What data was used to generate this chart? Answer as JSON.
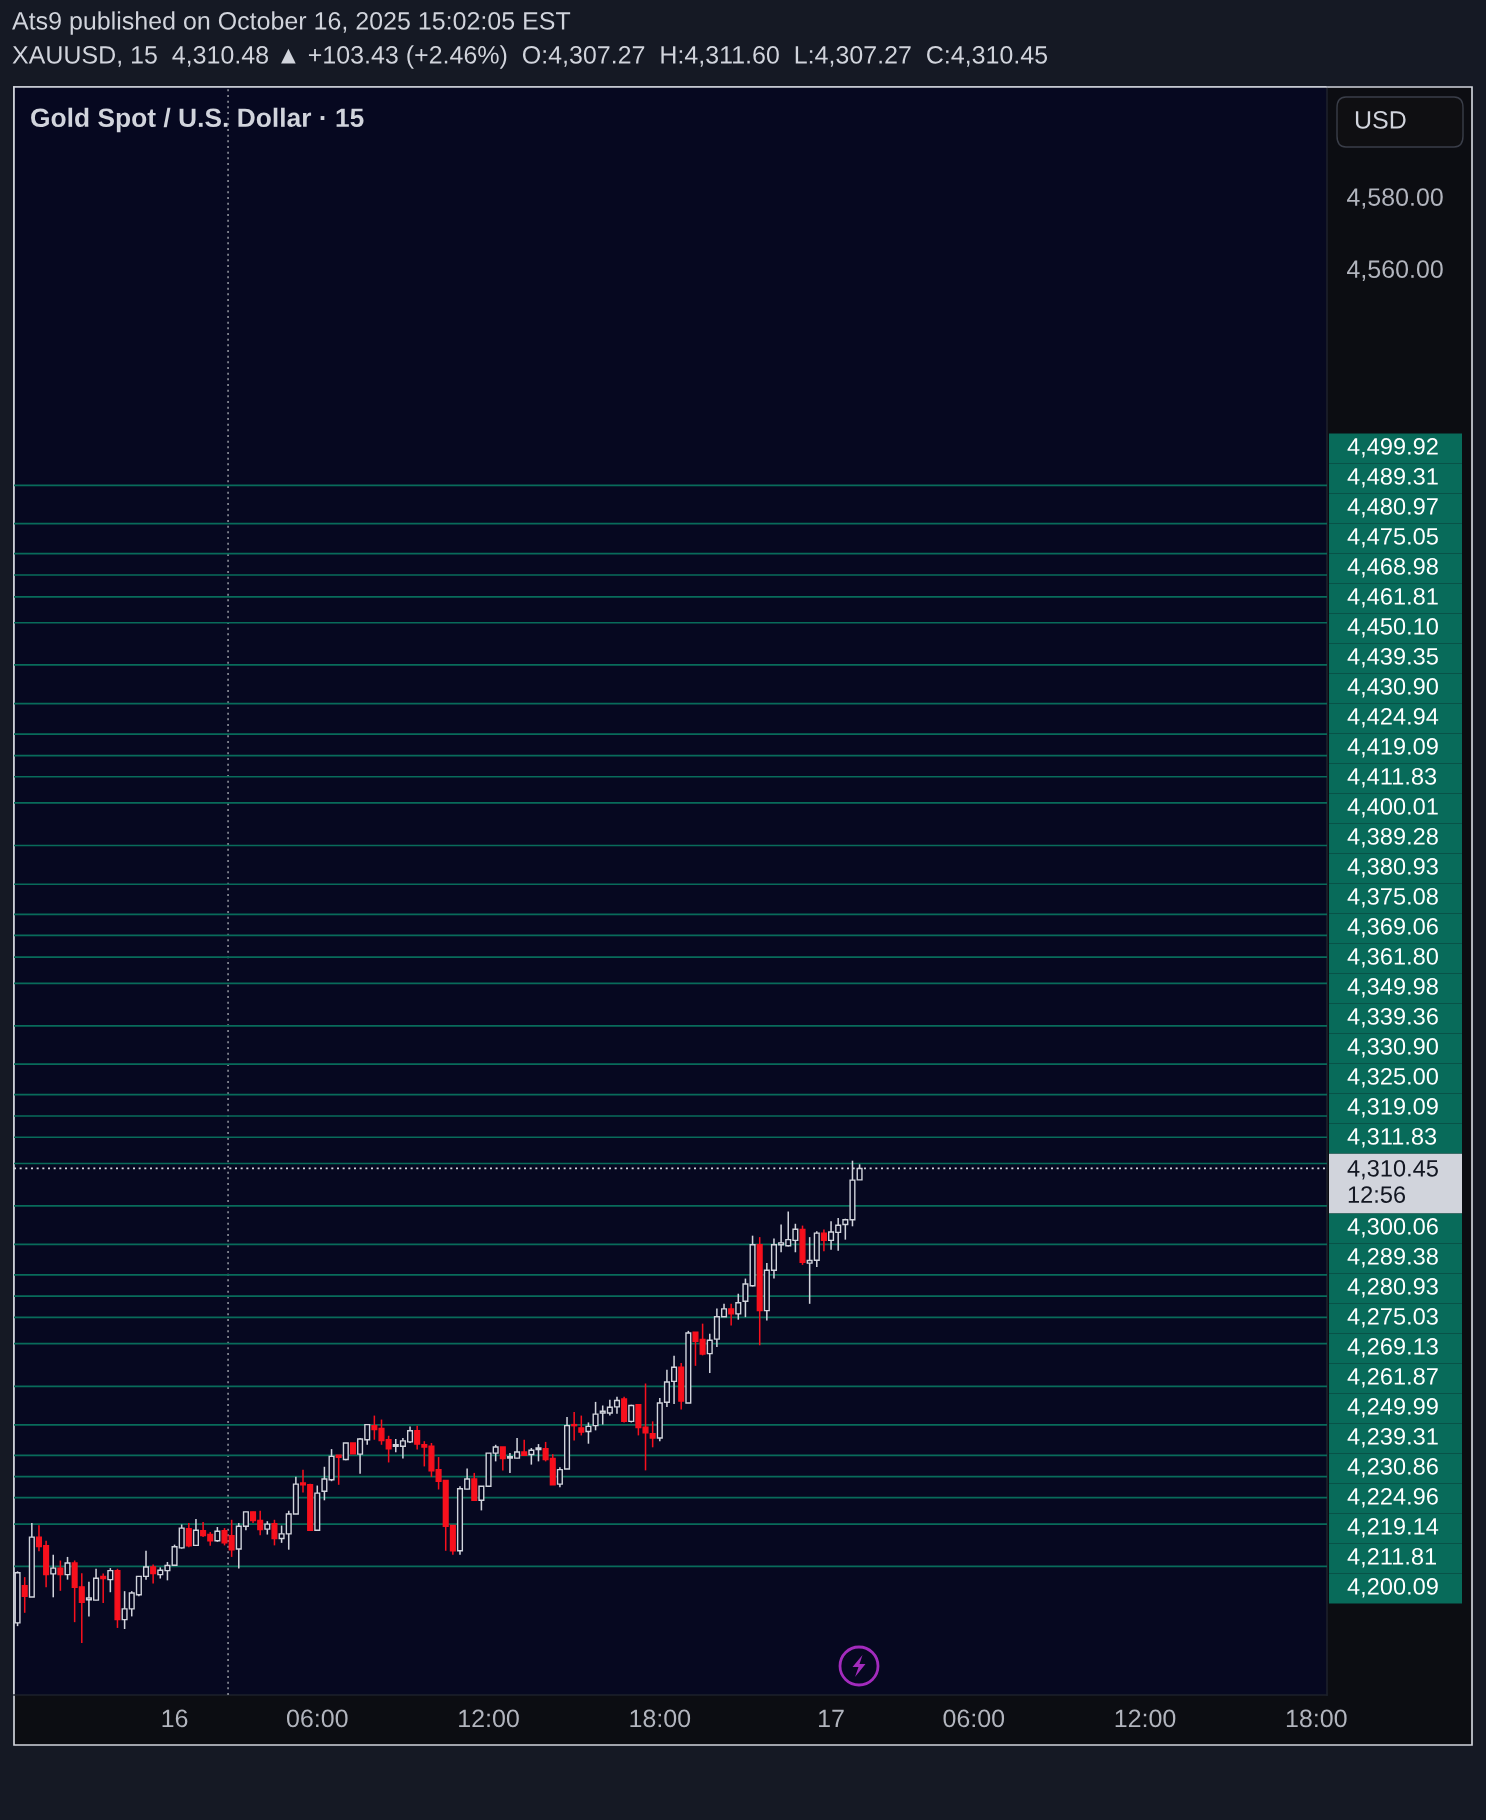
{
  "chart_data": {
    "type": "candlestick",
    "title": "Gold Spot / U.S. Dollar · 15",
    "ylabel": "USD",
    "annotations": [
      "Ats9 published on October 16, 2025 15:02:05 EST",
      "XAUUSD, 15  4,310.48 ▲ +103.43 (+2.46%)  O:4,307.27  H:4,311.60  L:4,307.27  C:4,310.45"
    ],
    "categories": [
      null,
      null,
      null,
      null,
      null,
      null,
      null,
      null,
      null,
      null,
      null,
      null,
      null,
      null,
      null,
      null,
      null,
      null,
      null,
      null,
      null,
      null,
      "16",
      null,
      null,
      null,
      null,
      null,
      null,
      null,
      null,
      null,
      null,
      null,
      null,
      null,
      null,
      null,
      null,
      null,
      null,
      null,
      "06:00",
      null,
      null,
      null,
      null,
      null,
      null,
      null,
      null,
      null,
      null,
      null,
      null,
      null,
      null,
      null,
      null,
      null,
      null,
      null,
      null,
      null,
      null,
      null,
      "12:00",
      null,
      null,
      null,
      null,
      null,
      null,
      null,
      null,
      null,
      null,
      null,
      null,
      null,
      null,
      null,
      null,
      null,
      null,
      null,
      null,
      null,
      null,
      null,
      "18:00",
      null,
      null,
      null,
      null,
      null,
      null,
      null,
      null,
      null,
      null,
      null,
      null,
      null,
      null,
      null,
      null,
      null,
      null,
      null,
      null,
      null,
      null,
      null,
      "17",
      null,
      null,
      null,
      null,
      null,
      null,
      null,
      null,
      null,
      null,
      null,
      null,
      null,
      null,
      null,
      null,
      null,
      null,
      null,
      "06:00",
      null,
      null,
      null,
      null,
      null,
      null,
      null,
      null,
      null,
      null,
      null,
      null,
      null,
      null,
      null,
      null,
      null,
      null,
      null,
      null,
      null,
      null,
      null,
      "12:00",
      null,
      null,
      null,
      null,
      null,
      null,
      null,
      null,
      null,
      null,
      null,
      null,
      null,
      null,
      null,
      null,
      null,
      null,
      null,
      null,
      null,
      null,
      null,
      "18:00",
      null
    ],
    "ohlc": [
      [
        4184.4,
        4198.7,
        4183.5,
        4198.3
      ],
      [
        4194.7,
        4197.1,
        4187.2,
        4191.8
      ],
      [
        4191.6,
        4212.1,
        4191.6,
        4208.2
      ],
      [
        4208.2,
        4211.5,
        4204.3,
        4205.6
      ],
      [
        4205.8,
        4207.2,
        4194.3,
        4197.8
      ],
      [
        4198.0,
        4203.3,
        4191.5,
        4199.6
      ],
      [
        4199.6,
        4201.7,
        4193.3,
        4197.8
      ],
      [
        4197.8,
        4202.7,
        4196.4,
        4201.0
      ],
      [
        4201.0,
        4201.7,
        4184.6,
        4194.3
      ],
      [
        4194.4,
        4198.2,
        4178.8,
        4190.1
      ],
      [
        4190.8,
        4195.8,
        4186.2,
        4191.3
      ],
      [
        4190.7,
        4199.4,
        4190.7,
        4196.8
      ],
      [
        4197.3,
        4198.1,
        4189.9,
        4196.7
      ],
      [
        4196.4,
        4199.6,
        4192.9,
        4198.9
      ],
      [
        4198.9,
        4199.4,
        4183.0,
        4185.3
      ],
      [
        4185.3,
        4193.2,
        4182.7,
        4188.3
      ],
      [
        4188.3,
        4193.2,
        4186.2,
        4192.7
      ],
      [
        4192.2,
        4197.3,
        4191.8,
        4197.3
      ],
      [
        4197.3,
        4204.4,
        4196.4,
        4199.9
      ],
      [
        4199.9,
        4200.6,
        4195.3,
        4198.1
      ],
      [
        4197.8,
        4199.8,
        4196.7,
        4199.0
      ],
      [
        4198.9,
        4201.3,
        4196.2,
        4200.3
      ],
      [
        4200.4,
        4206.1,
        4200.4,
        4205.5
      ],
      [
        4205.2,
        4211.7,
        4205.0,
        4210.7
      ],
      [
        4210.5,
        4212.1,
        4205.4,
        4205.8
      ],
      [
        4205.9,
        4213.2,
        4205.9,
        4210.1
      ],
      [
        4210.0,
        4212.4,
        4208.2,
        4208.6
      ],
      [
        4208.9,
        4209.6,
        4205.8,
        4207.2
      ],
      [
        4207.2,
        4211.0,
        4206.9,
        4209.8
      ],
      [
        4210.0,
        4210.7,
        4205.9,
        4206.6
      ],
      [
        4208.6,
        4213.0,
        4202.7,
        4204.7
      ],
      [
        4204.9,
        4212.1,
        4199.5,
        4211.2
      ],
      [
        4211.2,
        4215.2,
        4210.1,
        4215.2
      ],
      [
        4215.2,
        4215.2,
        4212.1,
        4212.8
      ],
      [
        4212.8,
        4215.5,
        4208.7,
        4210.3
      ],
      [
        4210.4,
        4212.6,
        4208.9,
        4211.8
      ],
      [
        4211.9,
        4213.0,
        4205.9,
        4207.8
      ],
      [
        4207.8,
        4211.4,
        4206.6,
        4209.1
      ],
      [
        4209.1,
        4215.5,
        4204.7,
        4214.6
      ],
      [
        4214.6,
        4224.9,
        4214.6,
        4222.9
      ],
      [
        4223.2,
        4226.9,
        4220.6,
        4222.7
      ],
      [
        4222.7,
        4223.0,
        4210.1,
        4210.1
      ],
      [
        4210.1,
        4222.5,
        4210.1,
        4220.4
      ],
      [
        4220.9,
        4227.7,
        4218.4,
        4224.3
      ],
      [
        4224.1,
        4232.6,
        4223.7,
        4230.6
      ],
      [
        4230.9,
        4230.9,
        4222.7,
        4230.3
      ],
      [
        4229.7,
        4234.3,
        4229.5,
        4234.3
      ],
      [
        4234.3,
        4234.3,
        4231.3,
        4231.3
      ],
      [
        4231.2,
        4235.7,
        4225.8,
        4235.4
      ],
      [
        4235.2,
        4239.4,
        4233.8,
        4239.4
      ],
      [
        4239.1,
        4241.9,
        4235.2,
        4238.0
      ],
      [
        4238.3,
        4240.8,
        4233.8,
        4235.0
      ],
      [
        4235.2,
        4236.3,
        4228.9,
        4232.7
      ],
      [
        4233.4,
        4235.4,
        4231.7,
        4233.8
      ],
      [
        4233.4,
        4235.7,
        4230.0,
        4234.9
      ],
      [
        4234.6,
        4238.9,
        4234.3,
        4237.7
      ],
      [
        4237.7,
        4239.1,
        4232.5,
        4234.0
      ],
      [
        4233.8,
        4234.8,
        4227.8,
        4233.2
      ],
      [
        4233.4,
        4234.3,
        4224.9,
        4226.6
      ],
      [
        4226.9,
        4230.4,
        4221.4,
        4223.7
      ],
      [
        4223.9,
        4223.9,
        4204.4,
        4211.2
      ],
      [
        4211.4,
        4211.4,
        4203.3,
        4204.4
      ],
      [
        4204.4,
        4222.3,
        4203.3,
        4221.6
      ],
      [
        4221.5,
        4227.2,
        4221.5,
        4224.3
      ],
      [
        4224.3,
        4226.0,
        4218.4,
        4218.4
      ],
      [
        4218.4,
        4222.3,
        4215.6,
        4222.3
      ],
      [
        4222.3,
        4231.5,
        4222.1,
        4231.5
      ],
      [
        4231.5,
        4233.8,
        4229.2,
        4233.2
      ],
      [
        4233.2,
        4233.2,
        4226.7,
        4230.0
      ],
      [
        4230.1,
        4231.5,
        4226.0,
        4230.5
      ],
      [
        4230.1,
        4235.7,
        4230.1,
        4231.8
      ],
      [
        4231.8,
        4235.2,
        4230.9,
        4230.9
      ],
      [
        4231.1,
        4232.9,
        4228.3,
        4232.3
      ],
      [
        4232.5,
        4234.0,
        4229.2,
        4232.9
      ],
      [
        4232.7,
        4234.6,
        4229.2,
        4229.7
      ],
      [
        4230.0,
        4231.2,
        4222.7,
        4222.7
      ],
      [
        4222.9,
        4227.6,
        4222.0,
        4226.9
      ],
      [
        4227.1,
        4241.5,
        4227.1,
        4239.1
      ],
      [
        4239.4,
        4242.9,
        4235.0,
        4239.1
      ],
      [
        4238.5,
        4241.9,
        4236.4,
        4237.3
      ],
      [
        4237.5,
        4240.0,
        4234.1,
        4238.9
      ],
      [
        4239.1,
        4245.7,
        4237.8,
        4242.3
      ],
      [
        4242.6,
        4244.7,
        4239.4,
        4243.1
      ],
      [
        4242.6,
        4246.3,
        4241.9,
        4244.2
      ],
      [
        4244.3,
        4247.1,
        4242.4,
        4246.1
      ],
      [
        4246.5,
        4247.1,
        4240.0,
        4240.3
      ],
      [
        4240.3,
        4244.9,
        4240.0,
        4244.7
      ],
      [
        4244.9,
        4244.9,
        4236.4,
        4238.6
      ],
      [
        4238.7,
        4250.8,
        4226.7,
        4237.1
      ],
      [
        4236.9,
        4240.3,
        4233.1,
        4235.7
      ],
      [
        4235.7,
        4246.8,
        4234.8,
        4245.4
      ],
      [
        4245.6,
        4254.6,
        4244.3,
        4251.2
      ],
      [
        4251.4,
        4258.5,
        4245.1,
        4255.3
      ],
      [
        4255.3,
        4256.5,
        4243.6,
        4245.9
      ],
      [
        4245.4,
        4265.4,
        4245.4,
        4264.8
      ],
      [
        4265.0,
        4265.0,
        4255.7,
        4262.5
      ],
      [
        4263.0,
        4267.4,
        4258.6,
        4259.0
      ],
      [
        4259.1,
        4264.6,
        4253.7,
        4262.8
      ],
      [
        4263.1,
        4271.6,
        4260.9,
        4269.3
      ],
      [
        4269.3,
        4272.9,
        4269.3,
        4271.5
      ],
      [
        4271.5,
        4272.9,
        4266.9,
        4270.1
      ],
      [
        4270.1,
        4275.7,
        4268.5,
        4273.2
      ],
      [
        4273.6,
        4279.9,
        4269.2,
        4278.4
      ],
      [
        4277.9,
        4291.8,
        4277.7,
        4289.3
      ],
      [
        4289.3,
        4291.4,
        4261.4,
        4271.0
      ],
      [
        4271.0,
        4284.2,
        4268.3,
        4282.2
      ],
      [
        4282.2,
        4291.0,
        4279.9,
        4289.3
      ],
      [
        4289.3,
        4294.9,
        4287.2,
        4289.8
      ],
      [
        4289.0,
        4298.5,
        4288.8,
        4290.7
      ],
      [
        4290.5,
        4295.1,
        4287.2,
        4293.6
      ],
      [
        4293.5,
        4294.6,
        4283.7,
        4284.4
      ],
      [
        4284.2,
        4291.4,
        4272.9,
        4284.9
      ],
      [
        4285.0,
        4293.0,
        4283.1,
        4292.5
      ],
      [
        4292.5,
        4293.5,
        4287.5,
        4290.5
      ],
      [
        4290.5,
        4295.8,
        4287.9,
        4292.8
      ],
      [
        4292.7,
        4296.7,
        4287.6,
        4294.7
      ],
      [
        4294.9,
        4296.5,
        4290.7,
        4296.2
      ],
      [
        4296.2,
        4312.6,
        4294.4,
        4307.2
      ],
      [
        4307.27,
        4311.6,
        4307.27,
        4310.45
      ],
      null,
      null,
      null,
      null,
      null,
      null,
      null,
      null,
      null,
      null,
      null,
      null,
      null,
      null,
      null,
      null,
      null,
      null,
      null,
      null,
      null,
      null,
      null,
      null,
      null,
      null,
      null,
      null,
      null,
      null,
      null,
      null,
      null,
      null,
      null,
      null,
      null,
      null,
      null,
      null,
      null,
      null,
      null,
      null,
      null,
      null,
      null,
      null,
      null,
      null,
      null,
      null,
      null,
      null,
      null,
      null,
      null,
      null,
      null,
      null,
      null,
      null,
      null,
      null,
      null
    ],
    "colors": [
      "#d1d4dc",
      "#f7101d",
      "#d1d4dc",
      "#f7101d",
      "#f7101d",
      "#d1d4dc",
      "#f7101d",
      "#d1d4dc",
      "#f7101d",
      "#f7101d",
      "#d1d4dc",
      "#d1d4dc",
      "#f7101d",
      "#d1d4dc",
      "#f7101d",
      "#d1d4dc",
      "#d1d4dc",
      "#d1d4dc",
      "#d1d4dc",
      "#f7101d",
      "#d1d4dc",
      "#d1d4dc",
      "#d1d4dc",
      "#d1d4dc",
      "#f7101d",
      "#d1d4dc",
      "#f7101d",
      "#f7101d",
      "#d1d4dc",
      "#f7101d",
      "#f7101d",
      "#d1d4dc",
      "#d1d4dc",
      "#f7101d",
      "#f7101d",
      "#d1d4dc",
      "#f7101d",
      "#d1d4dc",
      "#d1d4dc",
      "#d1d4dc",
      "#f7101d",
      "#f7101d",
      "#d1d4dc",
      "#d1d4dc",
      "#d1d4dc",
      "#f7101d",
      "#d1d4dc",
      "#f7101d",
      "#d1d4dc",
      "#d1d4dc",
      "#f7101d",
      "#f7101d",
      "#f7101d",
      "#d1d4dc",
      "#d1d4dc",
      "#d1d4dc",
      "#f7101d",
      "#f7101d",
      "#f7101d",
      "#f7101d",
      "#f7101d",
      "#f7101d",
      "#d1d4dc",
      "#d1d4dc",
      "#f7101d",
      "#d1d4dc",
      "#d1d4dc",
      "#d1d4dc",
      "#f7101d",
      "#d1d4dc",
      "#d1d4dc",
      "#f7101d",
      "#d1d4dc",
      "#d1d4dc",
      "#f7101d",
      "#f7101d",
      "#d1d4dc",
      "#d1d4dc",
      "#f7101d",
      "#f7101d",
      "#d1d4dc",
      "#d1d4dc",
      "#d1d4dc",
      "#d1d4dc",
      "#d1d4dc",
      "#f7101d",
      "#d1d4dc",
      "#f7101d",
      "#f7101d",
      "#f7101d",
      "#d1d4dc",
      "#d1d4dc",
      "#d1d4dc",
      "#f7101d",
      "#d1d4dc",
      "#f7101d",
      "#f7101d",
      "#d1d4dc",
      "#d1d4dc",
      "#d1d4dc",
      "#f7101d",
      "#d1d4dc",
      "#d1d4dc",
      "#d1d4dc",
      "#f7101d",
      "#d1d4dc",
      "#d1d4dc",
      "#d1d4dc",
      "#d1d4dc",
      "#d1d4dc",
      "#f7101d",
      "#d1d4dc",
      "#d1d4dc",
      "#f7101d",
      "#d1d4dc",
      "#d1d4dc",
      "#d1d4dc",
      "#d1d4dc",
      "#d1d4dc",
      null,
      null,
      null,
      null,
      null,
      null,
      null,
      null,
      null,
      null,
      null,
      null,
      null,
      null,
      null,
      null,
      null,
      null,
      null,
      null,
      null,
      null,
      null,
      null,
      null,
      null,
      null,
      null,
      null,
      null,
      null,
      null,
      null,
      null,
      null,
      null,
      null,
      null,
      null,
      null,
      null,
      null,
      null,
      null,
      null,
      null,
      null,
      null,
      null,
      null,
      null,
      null,
      null,
      null,
      null,
      null,
      null,
      null,
      null,
      null,
      null,
      null,
      null,
      null,
      null
    ],
    "ylim": [
      4164.4,
      4610.4
    ],
    "yticks": [
      {
        "value": 4580,
        "label": "4,580.00"
      },
      {
        "value": 4560,
        "label": "4,560.00"
      }
    ],
    "ref_lines": [
      {
        "axis": "y",
        "value": 4310.45,
        "label": "4,310.45\n12:56",
        "color": "#d1d4dc",
        "line_style": "dotted"
      },
      {
        "axis": "y",
        "value": 4499.92,
        "label": "4,499.92",
        "color": "#086b5a"
      },
      {
        "axis": "y",
        "value": 4489.31,
        "label": "4,489.31",
        "color": "#086b5a"
      },
      {
        "axis": "y",
        "value": 4480.97,
        "label": "4,480.97",
        "color": "#086b5a"
      },
      {
        "axis": "y",
        "value": 4475.05,
        "label": "4,475.05",
        "color": "#086b5a"
      },
      {
        "axis": "y",
        "value": 4468.98,
        "label": "4,468.98",
        "color": "#086b5a"
      },
      {
        "axis": "y",
        "value": 4461.81,
        "label": "4,461.81",
        "color": "#086b5a"
      },
      {
        "axis": "y",
        "value": 4450.1,
        "label": "4,450.10",
        "color": "#086b5a"
      },
      {
        "axis": "y",
        "value": 4439.35,
        "label": "4,439.35",
        "color": "#086b5a"
      },
      {
        "axis": "y",
        "value": 4430.9,
        "label": "4,430.90",
        "color": "#086b5a"
      },
      {
        "axis": "y",
        "value": 4424.94,
        "label": "4,424.94",
        "color": "#086b5a"
      },
      {
        "axis": "y",
        "value": 4419.09,
        "label": "4,419.09",
        "color": "#086b5a"
      },
      {
        "axis": "y",
        "value": 4411.83,
        "label": "4,411.83",
        "color": "#086b5a"
      },
      {
        "axis": "y",
        "value": 4400.01,
        "label": "4,400.01",
        "color": "#086b5a"
      },
      {
        "axis": "y",
        "value": 4389.28,
        "label": "4,389.28",
        "color": "#086b5a"
      },
      {
        "axis": "y",
        "value": 4380.93,
        "label": "4,380.93",
        "color": "#086b5a"
      },
      {
        "axis": "y",
        "value": 4375.08,
        "label": "4,375.08",
        "color": "#086b5a"
      },
      {
        "axis": "y",
        "value": 4369.06,
        "label": "4,369.06",
        "color": "#086b5a"
      },
      {
        "axis": "y",
        "value": 4361.8,
        "label": "4,361.80",
        "color": "#086b5a"
      },
      {
        "axis": "y",
        "value": 4349.98,
        "label": "4,349.98",
        "color": "#086b5a"
      },
      {
        "axis": "y",
        "value": 4339.36,
        "label": "4,339.36",
        "color": "#086b5a"
      },
      {
        "axis": "y",
        "value": 4330.9,
        "label": "4,330.90",
        "color": "#086b5a"
      },
      {
        "axis": "y",
        "value": 4325.0,
        "label": "4,325.00",
        "color": "#086b5a"
      },
      {
        "axis": "y",
        "value": 4319.09,
        "label": "4,319.09",
        "color": "#086b5a"
      },
      {
        "axis": "y",
        "value": 4311.83,
        "label": "4,311.83",
        "color": "#086b5a"
      },
      {
        "axis": "y",
        "value": 4300.06,
        "label": "4,300.06",
        "color": "#086b5a"
      },
      {
        "axis": "y",
        "value": 4289.38,
        "label": "4,289.38",
        "color": "#086b5a"
      },
      {
        "axis": "y",
        "value": 4280.93,
        "label": "4,280.93",
        "color": "#086b5a"
      },
      {
        "axis": "y",
        "value": 4275.03,
        "label": "4,275.03",
        "color": "#086b5a"
      },
      {
        "axis": "y",
        "value": 4269.13,
        "label": "4,269.13",
        "color": "#086b5a"
      },
      {
        "axis": "y",
        "value": 4261.87,
        "label": "4,261.87",
        "color": "#086b5a"
      },
      {
        "axis": "y",
        "value": 4249.99,
        "label": "4,249.99",
        "color": "#086b5a"
      },
      {
        "axis": "y",
        "value": 4239.31,
        "label": "4,239.31",
        "color": "#086b5a"
      },
      {
        "axis": "y",
        "value": 4230.86,
        "label": "4,230.86",
        "color": "#086b5a"
      },
      {
        "axis": "y",
        "value": 4224.96,
        "label": "4,224.96",
        "color": "#086b5a"
      },
      {
        "axis": "y",
        "value": 4219.14,
        "label": "4,219.14",
        "color": "#086b5a"
      },
      {
        "axis": "y",
        "value": 4211.81,
        "label": "4,211.81",
        "color": "#086b5a"
      },
      {
        "axis": "y",
        "value": 4200.09,
        "label": "4,200.09",
        "color": "#086b5a"
      }
    ]
  }
}
